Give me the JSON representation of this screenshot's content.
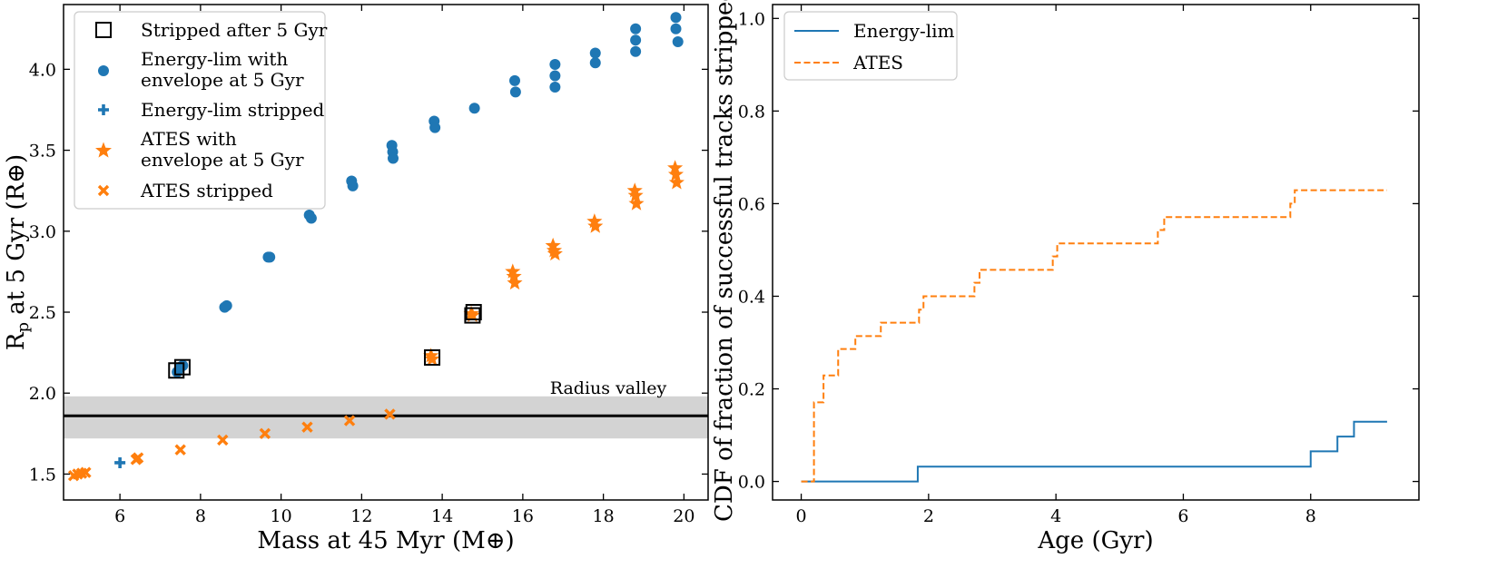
{
  "colors": {
    "blue": "#1f77b4",
    "orange": "#ff7f0e",
    "band": "#d3d3d3",
    "valley_line": "#000000"
  },
  "chart_data": [
    {
      "type": "scatter",
      "xlabel": "Mass at 45 Myr (M⊕)",
      "ylabel": "Rp at 5 Gyr (R⊕)",
      "xlim": [
        4.6,
        20.6
      ],
      "ylim": [
        1.34,
        4.4
      ],
      "xticks": [
        6,
        8,
        10,
        12,
        14,
        16,
        18,
        20
      ],
      "yticks": [
        1.5,
        2.0,
        2.5,
        3.0,
        3.5,
        4.0
      ],
      "radius_valley": {
        "label": "Radius valley",
        "value": 1.86,
        "band": [
          1.72,
          1.98
        ]
      },
      "legend": {
        "position": "top-left",
        "entries": [
          {
            "label": [
              "Stripped after 5 Gyr"
            ],
            "marker": "open-square",
            "color": "#000000"
          },
          {
            "label": [
              "Energy-lim with",
              "envelope at 5 Gyr"
            ],
            "marker": "circle",
            "color": "#1f77b4"
          },
          {
            "label": [
              "Energy-lim stripped"
            ],
            "marker": "plus",
            "color": "#1f77b4"
          },
          {
            "label": [
              "ATES with",
              "envelope at 5 Gyr"
            ],
            "marker": "star",
            "color": "#ff7f0e"
          },
          {
            "label": [
              "ATES stripped"
            ],
            "marker": "x",
            "color": "#ff7f0e"
          }
        ]
      },
      "series": [
        {
          "name": "Energy-lim with envelope at 5 Gyr",
          "marker": "circle",
          "color": "#1f77b4",
          "points": [
            [
              7.42,
              2.13
            ],
            [
              7.5,
              2.16
            ],
            [
              7.56,
              2.17
            ],
            [
              8.6,
              2.53
            ],
            [
              8.65,
              2.54
            ],
            [
              9.68,
              2.84
            ],
            [
              9.72,
              2.84
            ],
            [
              10.7,
              3.1
            ],
            [
              10.75,
              3.08
            ],
            [
              11.75,
              3.31
            ],
            [
              11.78,
              3.28
            ],
            [
              12.75,
              3.53
            ],
            [
              12.77,
              3.49
            ],
            [
              12.78,
              3.45
            ],
            [
              13.8,
              3.68
            ],
            [
              13.82,
              3.64
            ],
            [
              14.8,
              3.76
            ],
            [
              15.8,
              3.93
            ],
            [
              15.82,
              3.86
            ],
            [
              16.8,
              4.03
            ],
            [
              16.8,
              3.96
            ],
            [
              16.8,
              3.89
            ],
            [
              17.8,
              4.1
            ],
            [
              17.8,
              4.04
            ],
            [
              18.8,
              4.25
            ],
            [
              18.8,
              4.18
            ],
            [
              18.8,
              4.11
            ],
            [
              19.8,
              4.32
            ],
            [
              19.8,
              4.25
            ],
            [
              19.85,
              4.17
            ]
          ]
        },
        {
          "name": "Energy-lim stripped",
          "marker": "plus",
          "color": "#1f77b4",
          "points": [
            [
              6.0,
              1.57
            ]
          ]
        },
        {
          "name": "ATES with envelope at 5 Gyr",
          "marker": "star",
          "color": "#ff7f0e",
          "points": [
            [
              13.72,
              2.23
            ],
            [
              13.75,
              2.21
            ],
            [
              14.72,
              2.49
            ],
            [
              14.75,
              2.48
            ],
            [
              15.75,
              2.75
            ],
            [
              15.78,
              2.72
            ],
            [
              15.8,
              2.68
            ],
            [
              16.75,
              2.91
            ],
            [
              16.78,
              2.88
            ],
            [
              16.8,
              2.86
            ],
            [
              17.78,
              3.06
            ],
            [
              17.8,
              3.03
            ],
            [
              18.78,
              3.25
            ],
            [
              18.8,
              3.22
            ],
            [
              18.82,
              3.17
            ],
            [
              19.78,
              3.39
            ],
            [
              19.8,
              3.35
            ],
            [
              19.82,
              3.3
            ]
          ]
        },
        {
          "name": "ATES stripped",
          "marker": "x",
          "color": "#ff7f0e",
          "points": [
            [
              4.85,
              1.49
            ],
            [
              4.95,
              1.5
            ],
            [
              5.05,
              1.505
            ],
            [
              5.15,
              1.51
            ],
            [
              6.4,
              1.59
            ],
            [
              6.45,
              1.6
            ],
            [
              7.5,
              1.65
            ],
            [
              8.55,
              1.71
            ],
            [
              9.6,
              1.75
            ],
            [
              10.65,
              1.79
            ],
            [
              11.7,
              1.83
            ],
            [
              12.7,
              1.87
            ]
          ]
        },
        {
          "name": "Stripped after 5 Gyr",
          "marker": "open-square",
          "color": "#000000",
          "points": [
            [
              7.4,
              2.14
            ],
            [
              7.55,
              2.16
            ],
            [
              13.75,
              2.22
            ],
            [
              14.75,
              2.48
            ],
            [
              14.78,
              2.5
            ]
          ]
        }
      ]
    },
    {
      "type": "line",
      "xlabel": "Age (Gyr)",
      "ylabel": "CDF of fraction of successful tracks stripped",
      "xlim": [
        -0.45,
        9.7
      ],
      "ylim": [
        -0.04,
        1.03
      ],
      "xticks": [
        0,
        2,
        4,
        6,
        8
      ],
      "yticks": [
        0.0,
        0.2,
        0.4,
        0.6,
        0.8,
        1.0
      ],
      "legend": {
        "position": "top-left",
        "entries": [
          {
            "label": "Energy-lim",
            "style": "solid",
            "color": "#1f77b4"
          },
          {
            "label": "ATES",
            "style": "dashed",
            "color": "#ff7f0e"
          }
        ]
      },
      "series": [
        {
          "name": "Energy-lim",
          "style": "solid",
          "color": "#1f77b4",
          "steps": [
            [
              0,
              0
            ],
            [
              1.83,
              0.032
            ],
            [
              8.0,
              0.065
            ],
            [
              8.42,
              0.097
            ],
            [
              8.68,
              0.129
            ],
            [
              9.2,
              0.129
            ]
          ]
        },
        {
          "name": "ATES",
          "style": "dashed",
          "color": "#ff7f0e",
          "steps": [
            [
              0,
              0
            ],
            [
              0.2,
              0.171
            ],
            [
              0.35,
              0.229
            ],
            [
              0.58,
              0.286
            ],
            [
              0.85,
              0.314
            ],
            [
              1.25,
              0.343
            ],
            [
              1.85,
              0.371
            ],
            [
              1.92,
              0.4
            ],
            [
              2.72,
              0.429
            ],
            [
              2.8,
              0.457
            ],
            [
              3.95,
              0.486
            ],
            [
              4.02,
              0.514
            ],
            [
              5.6,
              0.543
            ],
            [
              5.7,
              0.571
            ],
            [
              7.68,
              0.6
            ],
            [
              7.75,
              0.629
            ],
            [
              9.2,
              0.629
            ]
          ]
        }
      ]
    }
  ]
}
